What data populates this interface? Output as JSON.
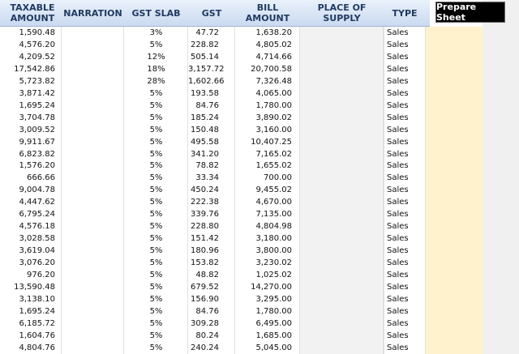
{
  "table": {
    "headers": [
      "TAXABLE AMOUNT",
      "NARRATION",
      "GST SLAB",
      "GST",
      "BILL AMOUNT",
      "PLACE OF SUPPLY",
      "TYPE"
    ],
    "rows": [
      [
        "1,590.48",
        "3%",
        "47.72",
        "1,638.20",
        "Sales"
      ],
      [
        "4,576.20",
        "5%",
        "228.82",
        "4,805.02",
        "Sales"
      ],
      [
        "4,209.52",
        "12%",
        "505.14",
        "4,714.66",
        "Sales"
      ],
      [
        "17,542.86",
        "18%",
        "3,157.72",
        "20,700.58",
        "Sales"
      ],
      [
        "5,723.82",
        "28%",
        "1,602.66",
        "7,326.48",
        "Sales"
      ],
      [
        "3,871.42",
        "5%",
        "193.58",
        "4,065.00",
        "Sales"
      ],
      [
        "1,695.24",
        "5%",
        "84.76",
        "1,780.00",
        "Sales"
      ],
      [
        "3,704.78",
        "5%",
        "185.24",
        "3,890.02",
        "Sales"
      ],
      [
        "3,009.52",
        "5%",
        "150.48",
        "3,160.00",
        "Sales"
      ],
      [
        "9,911.67",
        "5%",
        "495.58",
        "10,407.25",
        "Sales"
      ],
      [
        "6,823.82",
        "5%",
        "341.20",
        "7,165.02",
        "Sales"
      ],
      [
        "1,576.20",
        "5%",
        "78.82",
        "1,655.02",
        "Sales"
      ],
      [
        "666.66",
        "5%",
        "33.34",
        "700.00",
        "Sales"
      ],
      [
        "9,004.78",
        "5%",
        "450.24",
        "9,455.02",
        "Sales"
      ],
      [
        "4,447.62",
        "5%",
        "222.38",
        "4,670.00",
        "Sales"
      ],
      [
        "6,795.24",
        "5%",
        "339.76",
        "7,135.00",
        "Sales"
      ],
      [
        "4,576.18",
        "5%",
        "228.80",
        "4,804.98",
        "Sales"
      ],
      [
        "3,028.58",
        "5%",
        "151.42",
        "3,180.00",
        "Sales"
      ],
      [
        "3,619.04",
        "5%",
        "180.96",
        "3,800.00",
        "Sales"
      ],
      [
        "3,076.20",
        "5%",
        "153.82",
        "3,230.02",
        "Sales"
      ],
      [
        "976.20",
        "5%",
        "48.82",
        "1,025.02",
        "Sales"
      ],
      [
        "13,590.48",
        "5%",
        "679.52",
        "14,270.00",
        "Sales"
      ],
      [
        "3,138.10",
        "5%",
        "156.90",
        "3,295.00",
        "Sales"
      ],
      [
        "1,695.24",
        "5%",
        "84.76",
        "1,780.00",
        "Sales"
      ],
      [
        "6,185.72",
        "5%",
        "309.28",
        "6,495.00",
        "Sales"
      ],
      [
        "1,604.76",
        "5%",
        "80.24",
        "1,685.00",
        "Sales"
      ],
      [
        "4,804.76",
        "5%",
        "240.24",
        "5,045.00",
        "Sales"
      ]
    ]
  },
  "button": {
    "label": "Prepare Sheet"
  }
}
